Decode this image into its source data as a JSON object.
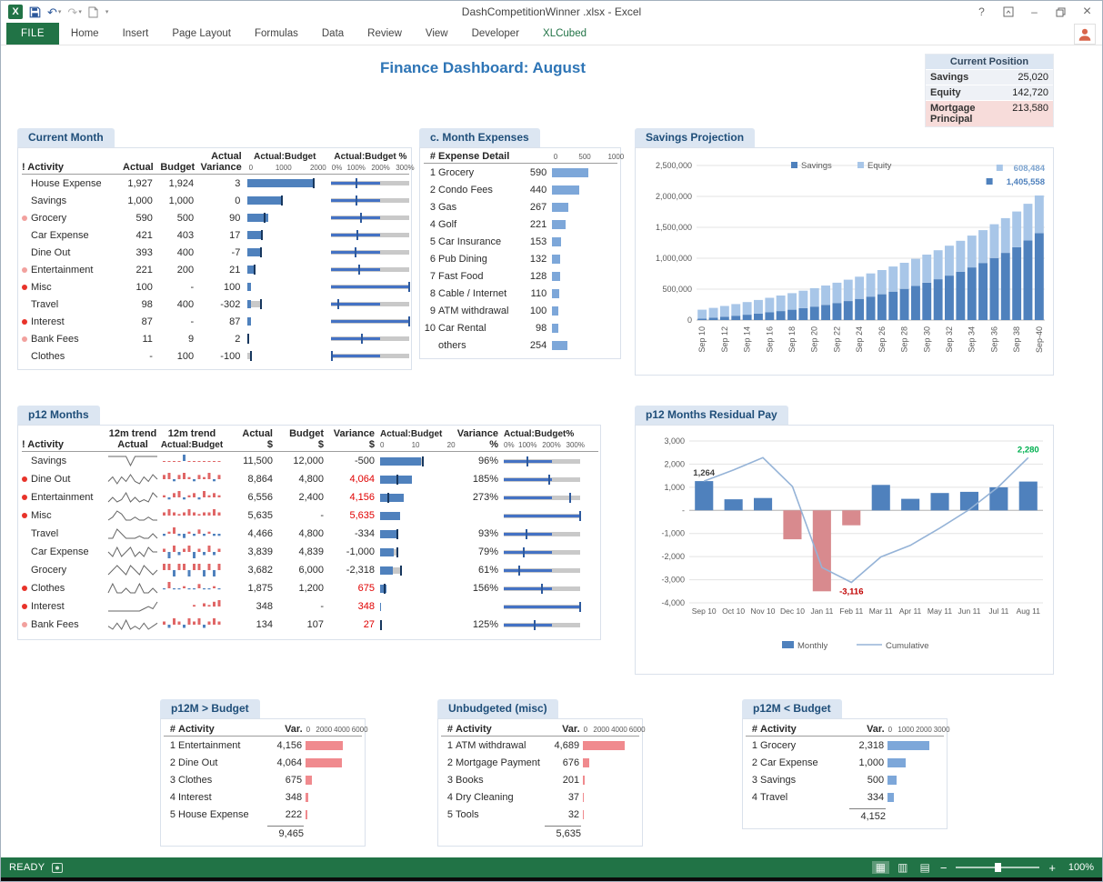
{
  "titlebar": {
    "filename": "DashCompetitionWinner .xlsx - Excel"
  },
  "icons": {
    "undo": "↶",
    "redo": "↷",
    "qat_caret": "▾",
    "help": "?",
    "minimize": "–",
    "close": "×",
    "view_normal": "▦",
    "view_layout": "▥",
    "view_break": "▤"
  },
  "ribbon": {
    "tabs": [
      {
        "label": "FILE",
        "style": "file"
      },
      {
        "label": "Home"
      },
      {
        "label": "Insert"
      },
      {
        "label": "Page Layout"
      },
      {
        "label": "Formulas"
      },
      {
        "label": "Data"
      },
      {
        "label": "Review"
      },
      {
        "label": "View"
      },
      {
        "label": "Developer"
      },
      {
        "label": "XLCubed",
        "style": "green"
      }
    ]
  },
  "dashboard_title": "Finance Dashboard: August",
  "current_position": {
    "title": "Current Position",
    "rows": [
      {
        "label": "Savings",
        "value": "25,020",
        "highlight": false
      },
      {
        "label": "Equity",
        "value": "142,720",
        "highlight": false
      },
      {
        "label": "Mortgage Principal",
        "value": "213,580",
        "highlight": true
      }
    ]
  },
  "current_month": {
    "title": "Current Month",
    "h_activity": "! Activity",
    "h_actual": "Actual",
    "h_budget": "Budget",
    "h_variance_top": "Actual",
    "h_variance": "Variance",
    "h_ab": "Actual:Budget",
    "h_abp": "Actual:Budget %",
    "scale_ab": [
      "0",
      "1000",
      "2000"
    ],
    "scale_abp": [
      "0%",
      "100%",
      "200%",
      "300%"
    ],
    "ab_max": 2100,
    "abp_max": 320,
    "rows": [
      {
        "dot": "none",
        "activity": "House Expense",
        "actual": "1,927",
        "budget": "1,924",
        "variance": "3",
        "bar": 1927,
        "target": 1924,
        "pct": 100
      },
      {
        "dot": "none",
        "activity": "Savings",
        "actual": "1,000",
        "budget": "1,000",
        "variance": "0",
        "bar": 1000,
        "target": 1000,
        "pct": 100
      },
      {
        "dot": "pink",
        "activity": "Grocery",
        "actual": "590",
        "budget": "500",
        "variance": "90",
        "bar": 590,
        "target": 500,
        "pct": 118
      },
      {
        "dot": "none",
        "activity": "Car Expense",
        "actual": "421",
        "budget": "403",
        "variance": "17",
        "bar": 421,
        "target": 403,
        "pct": 104
      },
      {
        "dot": "none",
        "activity": "Dine Out",
        "actual": "393",
        "budget": "400",
        "variance": "-7",
        "bar": 393,
        "target": 400,
        "pct": 98
      },
      {
        "dot": "pink",
        "activity": "Entertainment",
        "actual": "221",
        "budget": "200",
        "variance": "21",
        "bar": 221,
        "target": 200,
        "pct": 110
      },
      {
        "dot": "red",
        "activity": "Misc",
        "actual": "100",
        "budget": "-",
        "variance": "100",
        "bar": 100,
        "target": 0,
        "pct": 320
      },
      {
        "dot": "none",
        "activity": "Travel",
        "actual": "98",
        "budget": "400",
        "variance": "-302",
        "bar": 98,
        "target": 400,
        "pct": 25
      },
      {
        "dot": "red",
        "activity": "Interest",
        "actual": "87",
        "budget": "-",
        "variance": "87",
        "bar": 87,
        "target": 0,
        "pct": 320
      },
      {
        "dot": "pink",
        "activity": "Bank Fees",
        "actual": "11",
        "budget": "9",
        "variance": "2",
        "bar": 11,
        "target": 9,
        "pct": 122
      },
      {
        "dot": "none",
        "activity": "Clothes",
        "actual": "-",
        "budget": "100",
        "variance": "-100",
        "bar": 0,
        "target": 100,
        "pct": 0
      }
    ]
  },
  "month_expenses": {
    "title": "c. Month Expenses",
    "h_rank": "#",
    "h_detail": "Expense Detail",
    "scale": [
      "0",
      "500",
      "1000"
    ],
    "max": 1050,
    "rows": [
      {
        "rank": "1",
        "name": "Grocery",
        "value": "590",
        "bar": 590
      },
      {
        "rank": "2",
        "name": "Condo Fees",
        "value": "440",
        "bar": 440
      },
      {
        "rank": "3",
        "name": "Gas",
        "value": "267",
        "bar": 267
      },
      {
        "rank": "4",
        "name": "Golf",
        "value": "221",
        "bar": 221
      },
      {
        "rank": "5",
        "name": "Car Insurance",
        "value": "153",
        "bar": 153
      },
      {
        "rank": "6",
        "name": "Pub Dining",
        "value": "132",
        "bar": 132
      },
      {
        "rank": "7",
        "name": "Fast Food",
        "value": "128",
        "bar": 128
      },
      {
        "rank": "8",
        "name": "Cable / Internet",
        "value": "110",
        "bar": 110
      },
      {
        "rank": "9",
        "name": "ATM withdrawal",
        "value": "100",
        "bar": 100
      },
      {
        "rank": "10",
        "name": "Car Rental",
        "value": "98",
        "bar": 98
      },
      {
        "rank": "",
        "name": "others",
        "value": "254",
        "bar": 254
      }
    ]
  },
  "savings_projection": {
    "title": "Savings Projection",
    "chart_data": {
      "type": "bar",
      "stacked": true,
      "title": "Savings Projection",
      "ylim": [
        0,
        2500000
      ],
      "ytick_labels": [
        "2,500,000",
        "2,000,000",
        "1,500,000",
        "1,000,000",
        "500,000",
        "0"
      ],
      "categories": [
        "Sep 10",
        "Sep 11",
        "Sep 12",
        "Sep 13",
        "Sep 14",
        "Sep 15",
        "Sep 16",
        "Sep 17",
        "Sep 18",
        "Sep 19",
        "Sep 20",
        "Sep 21",
        "Sep 22",
        "Sep 23",
        "Sep 24",
        "Sep 25",
        "Sep 26",
        "Sep 27",
        "Sep 28",
        "Sep 29",
        "Sep 30",
        "Sep 31",
        "Sep 32",
        "Sep 33",
        "Sep 34",
        "Sep 35",
        "Sep 36",
        "Sep 37",
        "Sep 38",
        "Sep 39",
        "Sep-40"
      ],
      "xtick_every": 2,
      "legend": [
        "Savings",
        "Equity"
      ],
      "series": [
        {
          "name": "Savings",
          "color": "#4f81bd",
          "values": [
            25020,
            39000,
            54000,
            70000,
            87000,
            105000,
            125000,
            146000,
            168000,
            192000,
            218000,
            246000,
            276000,
            308000,
            342000,
            379000,
            418000,
            460000,
            505000,
            553000,
            605000,
            660000,
            719000,
            783000,
            851000,
            924000,
            1003000,
            1087000,
            1178000,
            1288000,
            1405558
          ]
        },
        {
          "name": "Equity",
          "color": "#a8c6e8",
          "values": [
            142720,
            158245,
            173771,
            189296,
            204821,
            220347,
            235872,
            251398,
            266923,
            282448,
            297974,
            313499,
            329025,
            344550,
            360075,
            375601,
            391126,
            406652,
            422177,
            437702,
            453228,
            468753,
            484279,
            499804,
            515329,
            530855,
            546380,
            561906,
            577431,
            592956,
            608484
          ]
        }
      ],
      "end_labels": [
        {
          "text": "608,484",
          "series": "Equity"
        },
        {
          "text": "1,405,558",
          "series": "Savings"
        }
      ]
    }
  },
  "p12_months": {
    "title": "p12 Months",
    "h_activity": "! Activity",
    "h_trend1_top": "12m trend",
    "h_trend1_bot": "Actual",
    "h_trend2_top": "12m trend",
    "h_trend2_bot": "Actual:Budget",
    "h_actual_top": "Actual",
    "h_budget_top": "Budget",
    "h_variance_top": "Variance",
    "h_dollar": "$",
    "h_ab": "Actual:Budget",
    "scale_ab": [
      "0",
      "10",
      "20"
    ],
    "ab_max": 21,
    "h_varpct_top": "Variance",
    "h_pct": "%",
    "h_abp": "Actual:Budget%",
    "scale_abp": [
      "0%",
      "100%",
      "200%",
      "300%"
    ],
    "abp_max": 320,
    "rows": [
      {
        "dot": "none",
        "activity": "Savings",
        "trend": [
          5,
          5,
          5,
          5,
          5,
          2,
          5,
          5,
          5,
          5,
          5,
          5
        ],
        "ab": [
          -0.4,
          -0.4,
          -0.4,
          -0.4,
          5,
          -0.4,
          -0.4,
          -0.4,
          -0.4,
          -0.4,
          -0.4,
          -0.4
        ],
        "ab_pos": "#4f81bd",
        "ab_neg": "#e06666",
        "actual": "11,500",
        "budget": "12,000",
        "variance": "-500",
        "var_red": false,
        "bar": 11.5,
        "target": 12,
        "pct_label": "96%",
        "pct": 96
      },
      {
        "dot": "red",
        "activity": "Dine Out",
        "trend": [
          3,
          5,
          2,
          5,
          3,
          6,
          3,
          2,
          5,
          3,
          6,
          4
        ],
        "ab": [
          2,
          3,
          -1,
          2,
          3,
          1,
          -1,
          2,
          1,
          3,
          -1,
          2
        ],
        "actual": "8,864",
        "budget": "4,800",
        "variance": "4,064",
        "var_red": true,
        "bar": 8.9,
        "target": 4.8,
        "pct_label": "185%",
        "pct": 185
      },
      {
        "dot": "red",
        "activity": "Entertainment",
        "trend": [
          2,
          4,
          2,
          3,
          6,
          2,
          4,
          2,
          3,
          2,
          6,
          4
        ],
        "ab": [
          1,
          -1,
          2,
          3,
          -1,
          1,
          2,
          -1,
          3,
          1,
          2,
          1
        ],
        "actual": "6,556",
        "budget": "2,400",
        "variance": "4,156",
        "var_red": true,
        "bar": 6.6,
        "target": 2.4,
        "pct_label": "273%",
        "pct": 273
      },
      {
        "dot": "red",
        "activity": "Misc",
        "trend": [
          2,
          3,
          5,
          4,
          2,
          2,
          3,
          2,
          2,
          3,
          2,
          2
        ],
        "ab": [
          1,
          2,
          1,
          0.5,
          1,
          2,
          1,
          0.5,
          1,
          1,
          2,
          1
        ],
        "actual": "5,635",
        "budget": "-",
        "variance": "5,635",
        "var_red": true,
        "bar": 5.6,
        "target": 0,
        "pct_label": "",
        "pct": 320
      },
      {
        "dot": "none",
        "activity": "Travel",
        "trend": [
          2,
          2,
          6,
          4,
          2,
          2,
          2,
          3,
          2,
          2,
          4,
          2
        ],
        "ab": [
          -1,
          1,
          3,
          -1,
          -2,
          1,
          -1,
          2,
          -1,
          1,
          -1,
          -1
        ],
        "actual": "4,466",
        "budget": "4,800",
        "variance": "-334",
        "var_red": false,
        "bar": 4.5,
        "target": 4.8,
        "pct_label": "93%",
        "pct": 93
      },
      {
        "dot": "none",
        "activity": "Car Expense",
        "trend": [
          4,
          2,
          6,
          2,
          4,
          6,
          2,
          4,
          2,
          6,
          4,
          4
        ],
        "ab": [
          1,
          -2,
          2,
          -1,
          1,
          2,
          -2,
          1,
          -1,
          2,
          -1,
          1
        ],
        "actual": "3,839",
        "budget": "4,839",
        "variance": "-1,000",
        "var_red": false,
        "bar": 3.8,
        "target": 4.8,
        "pct_label": "79%",
        "pct": 79
      },
      {
        "dot": "none",
        "activity": "Grocery",
        "trend": [
          3,
          4,
          5,
          4,
          3,
          5,
          4,
          3,
          5,
          4,
          3,
          4
        ],
        "ab": [
          1,
          1,
          -1,
          1,
          1,
          -1,
          1,
          1,
          -1,
          1,
          -1,
          1
        ],
        "actual": "3,682",
        "budget": "6,000",
        "variance": "-2,318",
        "var_red": false,
        "bar": 3.7,
        "target": 6,
        "pct_label": "61%",
        "pct": 61
      },
      {
        "dot": "red",
        "activity": "Clothes",
        "trend": [
          2,
          6,
          2,
          2,
          4,
          2,
          2,
          6,
          2,
          2,
          4,
          2
        ],
        "ab": [
          -0.5,
          3,
          -0.5,
          -0.5,
          1,
          -0.5,
          -0.5,
          2,
          -0.5,
          -0.5,
          1,
          -0.5
        ],
        "actual": "1,875",
        "budget": "1,200",
        "variance": "675",
        "var_red": true,
        "bar": 1.9,
        "target": 1.2,
        "pct_label": "156%",
        "pct": 156
      },
      {
        "dot": "red",
        "activity": "Interest",
        "trend": [
          1,
          1,
          1,
          1,
          1,
          1,
          1,
          1,
          2,
          3,
          2,
          5
        ],
        "ab": [
          0,
          0,
          0,
          0,
          0,
          0,
          0.5,
          0,
          1,
          0.5,
          1.5,
          2
        ],
        "actual": "348",
        "budget": "-",
        "variance": "348",
        "var_red": true,
        "bar": 0.3,
        "target": 0,
        "pct_label": "",
        "pct": 320
      },
      {
        "dot": "pink",
        "activity": "Bank Fees",
        "trend": [
          2,
          1,
          3,
          1,
          4,
          1,
          2,
          1,
          3,
          1,
          2,
          3
        ],
        "ab": [
          0.5,
          -0.5,
          1,
          0.5,
          -0.5,
          1,
          0.5,
          1,
          -0.5,
          0.5,
          1,
          0.5
        ],
        "actual": "134",
        "budget": "107",
        "variance": "27",
        "var_red": true,
        "bar": 0.13,
        "target": 0.11,
        "pct_label": "125%",
        "pct": 125
      }
    ]
  },
  "residual_pay": {
    "title": "p12 Months Residual Pay",
    "chart_data": {
      "type": "bar+line",
      "categories": [
        "Sep 10",
        "Oct 10",
        "Nov 10",
        "Dec 10",
        "Jan 11",
        "Feb 11",
        "Mar 11",
        "Apr 11",
        "May 11",
        "Jun 11",
        "Jul 11",
        "Aug 11"
      ],
      "ylim": [
        -4000,
        3000
      ],
      "ytick_labels": [
        "3,000",
        "2,000",
        "1,000",
        "-",
        "-1,000",
        "-2,000",
        "-3,000",
        "-4,000"
      ],
      "series": [
        {
          "name": "Monthly",
          "type": "bar",
          "pos_color": "#4f81bd",
          "neg_color": "#d88a8e",
          "values": [
            1264,
            480,
            536,
            -1250,
            -3500,
            -646,
            1100,
            500,
            750,
            800,
            1000,
            1246
          ]
        },
        {
          "name": "Cumulative",
          "type": "line",
          "color": "#95b3d7",
          "values": [
            1264,
            1744,
            2280,
            1030,
            -2470,
            -3116,
            -2016,
            -1516,
            -766,
            34,
            1034,
            2280
          ]
        }
      ],
      "point_labels": [
        {
          "index": 0,
          "text": "1,264",
          "color": "#404040",
          "position": "above"
        },
        {
          "index": 5,
          "text": "-3,116",
          "color": "#c00000",
          "position": "below"
        },
        {
          "index": 11,
          "text": "2,280",
          "color": "#00b050",
          "position": "above"
        }
      ],
      "legend": [
        "Monthly",
        "Cumulative"
      ]
    }
  },
  "bottom_tables": [
    {
      "title": "p12M > Budget",
      "h_rank": "#",
      "h_activity": "Activity",
      "h_value": "Var.",
      "scale": [
        "0",
        "2000",
        "4000",
        "6000"
      ],
      "max": 6300,
      "bar_color": "#f08a8e",
      "rows": [
        {
          "rank": "1",
          "name": "Entertainment",
          "value": "4,156",
          "bar": 4156
        },
        {
          "rank": "2",
          "name": "Dine Out",
          "value": "4,064",
          "bar": 4064
        },
        {
          "rank": "3",
          "name": "Clothes",
          "value": "675",
          "bar": 675
        },
        {
          "rank": "4",
          "name": "Interest",
          "value": "348",
          "bar": 348
        },
        {
          "rank": "5",
          "name": "House Expense",
          "value": "222",
          "bar": 222
        }
      ],
      "total": "9,465"
    },
    {
      "title": "Unbudgeted (misc)",
      "h_rank": "#",
      "h_activity": "Activity",
      "h_value": "Var.",
      "scale": [
        "0",
        "2000",
        "4000",
        "6000"
      ],
      "max": 6300,
      "bar_color": "#f08a8e",
      "rows": [
        {
          "rank": "1",
          "name": "ATM withdrawal",
          "value": "4,689",
          "bar": 4689
        },
        {
          "rank": "2",
          "name": "Mortgage Payment",
          "value": "676",
          "bar": 676
        },
        {
          "rank": "3",
          "name": "Books",
          "value": "201",
          "bar": 201
        },
        {
          "rank": "4",
          "name": "Dry Cleaning",
          "value": "37",
          "bar": 37
        },
        {
          "rank": "5",
          "name": "Tools",
          "value": "32",
          "bar": 32
        }
      ],
      "total": "5,635"
    },
    {
      "title": "p12M < Budget",
      "h_rank": "#",
      "h_activity": "Activity",
      "h_value": "Var.",
      "scale": [
        "0",
        "1000",
        "2000",
        "3000"
      ],
      "max": 3150,
      "bar_color": "#7da7d9",
      "rows": [
        {
          "rank": "1",
          "name": "Grocery",
          "value": "2,318",
          "bar": 2318
        },
        {
          "rank": "2",
          "name": "Car Expense",
          "value": "1,000",
          "bar": 1000
        },
        {
          "rank": "3",
          "name": "Savings",
          "value": "500",
          "bar": 500
        },
        {
          "rank": "4",
          "name": "Travel",
          "value": "334",
          "bar": 334
        }
      ],
      "total": "4,152"
    }
  ],
  "statusbar": {
    "mode": "READY",
    "zoom_level": "100%",
    "zoom_out_glyph": "−",
    "zoom_in_glyph": "+"
  }
}
